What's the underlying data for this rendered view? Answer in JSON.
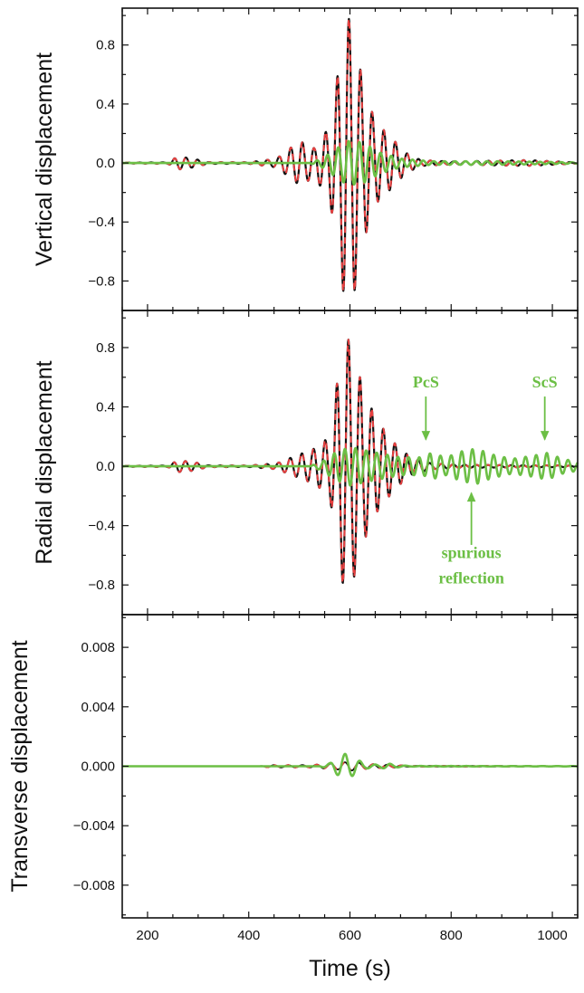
{
  "chart_data": [
    {
      "type": "line",
      "ylabel": "Vertical displacement",
      "xlim": [
        150,
        1050
      ],
      "ylim": [
        -1.0,
        1.05
      ],
      "yticks": [
        -0.8,
        -0.4,
        0.0,
        0.4,
        0.8
      ],
      "ytick_labels": [
        "−0.8",
        "−0.4",
        "0.0",
        "0.4",
        "0.8"
      ],
      "x_range": [
        150,
        1050
      ],
      "series": [
        {
          "color": "#111111",
          "style": "solid",
          "width": 2.2,
          "envelope": [
            [
              150,
              0.003
            ],
            [
              240,
              0.005
            ],
            [
              260,
              0.045
            ],
            [
              290,
              0.03
            ],
            [
              320,
              0.006
            ],
            [
              400,
              0.005
            ],
            [
              455,
              0.03
            ],
            [
              500,
              0.15
            ],
            [
              530,
              0.1
            ],
            [
              560,
              0.25
            ],
            [
              578,
              0.65
            ],
            [
              592,
              1.0
            ],
            [
              605,
              0.95
            ],
            [
              625,
              0.55
            ],
            [
              650,
              0.28
            ],
            [
              680,
              0.18
            ],
            [
              710,
              0.07
            ],
            [
              740,
              0.02
            ],
            [
              800,
              0.01
            ],
            [
              950,
              0.02
            ],
            [
              1050,
              0.004
            ]
          ],
          "period": 23,
          "peak_x": 598,
          "phase": 0.0
        },
        {
          "color": "#e84040",
          "style": "dashed",
          "width": 2.0,
          "envelope": [
            [
              150,
              0.003
            ],
            [
              240,
              0.005
            ],
            [
              260,
              0.045
            ],
            [
              290,
              0.03
            ],
            [
              320,
              0.006
            ],
            [
              400,
              0.005
            ],
            [
              455,
              0.03
            ],
            [
              500,
              0.15
            ],
            [
              530,
              0.1
            ],
            [
              560,
              0.25
            ],
            [
              578,
              0.65
            ],
            [
              592,
              1.0
            ],
            [
              605,
              0.95
            ],
            [
              625,
              0.55
            ],
            [
              650,
              0.28
            ],
            [
              680,
              0.18
            ],
            [
              710,
              0.07
            ],
            [
              740,
              0.02
            ],
            [
              800,
              0.01
            ],
            [
              950,
              0.02
            ],
            [
              1050,
              0.004
            ]
          ],
          "period": 23,
          "peak_x": 598,
          "phase": 0.0
        },
        {
          "color": "#6cbf45",
          "style": "solid",
          "width": 2.6,
          "envelope": [
            [
              150,
              0.0
            ],
            [
              520,
              0.0
            ],
            [
              545,
              0.03
            ],
            [
              570,
              0.09
            ],
            [
              595,
              0.15
            ],
            [
              625,
              0.14
            ],
            [
              660,
              0.07
            ],
            [
              700,
              0.03
            ],
            [
              760,
              0.012
            ],
            [
              900,
              0.012
            ],
            [
              1050,
              0.004
            ]
          ],
          "period": 21,
          "peak_x": 600,
          "phase": 0.7
        }
      ]
    },
    {
      "type": "line",
      "ylabel": "Radial displacement",
      "xlim": [
        150,
        1050
      ],
      "ylim": [
        -1.0,
        1.05
      ],
      "yticks": [
        -0.8,
        -0.4,
        0.0,
        0.4,
        0.8
      ],
      "ytick_labels": [
        "−0.8",
        "−0.4",
        "0.0",
        "0.4",
        "0.8"
      ],
      "x_range": [
        150,
        1050
      ],
      "series": [
        {
          "color": "#111111",
          "style": "solid",
          "width": 2.2,
          "envelope": [
            [
              150,
              0.003
            ],
            [
              240,
              0.005
            ],
            [
              260,
              0.04
            ],
            [
              290,
              0.03
            ],
            [
              320,
              0.006
            ],
            [
              400,
              0.005
            ],
            [
              455,
              0.02
            ],
            [
              500,
              0.08
            ],
            [
              530,
              0.12
            ],
            [
              560,
              0.2
            ],
            [
              578,
              0.65
            ],
            [
              592,
              0.9
            ],
            [
              608,
              0.75
            ],
            [
              628,
              0.5
            ],
            [
              655,
              0.3
            ],
            [
              690,
              0.15
            ],
            [
              720,
              0.06
            ],
            [
              760,
              0.02
            ],
            [
              820,
              0.01
            ],
            [
              1050,
              0.005
            ]
          ],
          "period": 23,
          "peak_x": 597,
          "phase": 0.0
        },
        {
          "color": "#e84040",
          "style": "dashed",
          "width": 2.0,
          "envelope": [
            [
              150,
              0.003
            ],
            [
              240,
              0.005
            ],
            [
              260,
              0.04
            ],
            [
              290,
              0.03
            ],
            [
              320,
              0.006
            ],
            [
              400,
              0.005
            ],
            [
              455,
              0.02
            ],
            [
              500,
              0.08
            ],
            [
              530,
              0.12
            ],
            [
              560,
              0.2
            ],
            [
              578,
              0.65
            ],
            [
              592,
              0.9
            ],
            [
              608,
              0.75
            ],
            [
              628,
              0.5
            ],
            [
              655,
              0.3
            ],
            [
              690,
              0.15
            ],
            [
              720,
              0.06
            ],
            [
              760,
              0.02
            ],
            [
              820,
              0.01
            ],
            [
              1050,
              0.005
            ]
          ],
          "period": 23,
          "peak_x": 597,
          "phase": 0.0
        },
        {
          "color": "#6cbf45",
          "style": "solid",
          "width": 2.6,
          "envelope": [
            [
              150,
              0.0
            ],
            [
              520,
              0.0
            ],
            [
              545,
              0.03
            ],
            [
              570,
              0.09
            ],
            [
              600,
              0.13
            ],
            [
              640,
              0.1
            ],
            [
              700,
              0.06
            ],
            [
              745,
              0.06
            ],
            [
              760,
              0.09
            ],
            [
              790,
              0.06
            ],
            [
              820,
              0.1
            ],
            [
              850,
              0.12
            ],
            [
              880,
              0.08
            ],
            [
              920,
              0.05
            ],
            [
              960,
              0.07
            ],
            [
              990,
              0.09
            ],
            [
              1020,
              0.05
            ],
            [
              1050,
              0.03
            ]
          ],
          "period": 21,
          "peak_x": 760,
          "phase": 0.6
        }
      ],
      "annotations": [
        {
          "text": "PcS",
          "x": 750,
          "y": 0.53
        },
        {
          "text": "ScS",
          "x": 985,
          "y": 0.53
        },
        {
          "text": "spurious",
          "x": 840,
          "y": -0.62
        },
        {
          "text": "reflection",
          "x": 840,
          "y": -0.79
        }
      ]
    },
    {
      "type": "line",
      "ylabel": "Transverse displacement",
      "xlabel": "Time (s)",
      "xlim": [
        150,
        1050
      ],
      "ylim": [
        -0.0102,
        0.0102
      ],
      "xticks": [
        200,
        400,
        600,
        800,
        1000
      ],
      "xtick_labels": [
        "200",
        "400",
        "600",
        "800",
        "1000"
      ],
      "yticks": [
        -0.008,
        -0.004,
        0.0,
        0.004,
        0.008
      ],
      "ytick_labels": [
        "−0.008",
        "−0.004",
        "0.000",
        "0.004",
        "0.008"
      ],
      "x_range": [
        150,
        1050
      ],
      "series": [
        {
          "color": "#111111",
          "style": "solid",
          "width": 1.8,
          "envelope": [
            [
              150,
              0.0
            ],
            [
              420,
              0.0
            ],
            [
              440,
              8e-05
            ],
            [
              520,
              8e-05
            ],
            [
              570,
              0.0002
            ],
            [
              600,
              0.0003
            ],
            [
              640,
              0.00015
            ],
            [
              680,
              0.0001
            ],
            [
              720,
              3e-05
            ],
            [
              1050,
              2e-05
            ]
          ],
          "period": 28,
          "peak_x": 590,
          "phase": 0.0
        },
        {
          "color": "#e84040",
          "style": "dashed",
          "width": 1.8,
          "envelope": [
            [
              150,
              0.0
            ],
            [
              420,
              0.0
            ],
            [
              440,
              8e-05
            ],
            [
              520,
              8e-05
            ],
            [
              570,
              0.0002
            ],
            [
              600,
              0.0003
            ],
            [
              640,
              0.00015
            ],
            [
              680,
              0.0001
            ],
            [
              720,
              3e-05
            ],
            [
              1050,
              2e-05
            ]
          ],
          "period": 28,
          "peak_x": 590,
          "phase": 0.0
        },
        {
          "color": "#6cbf45",
          "style": "solid",
          "width": 2.6,
          "envelope": [
            [
              150,
              0.0
            ],
            [
              540,
              0.0
            ],
            [
              560,
              0.0002
            ],
            [
              580,
              0.0007
            ],
            [
              592,
              0.00085
            ],
            [
              608,
              0.0006
            ],
            [
              630,
              0.00015
            ],
            [
              660,
              0.0001
            ],
            [
              675,
              0.0002
            ],
            [
              690,
              8e-05
            ],
            [
              720,
              2e-05
            ],
            [
              1050,
              1e-05
            ]
          ],
          "period": 30,
          "peak_x": 590,
          "phase": 0.0
        }
      ]
    }
  ],
  "colors": {
    "axis": "#111111",
    "reference_trace": "#111111",
    "dashed_trace": "#e84040",
    "highlight_trace": "#6cbf45",
    "annotation": "#6cbf45"
  }
}
